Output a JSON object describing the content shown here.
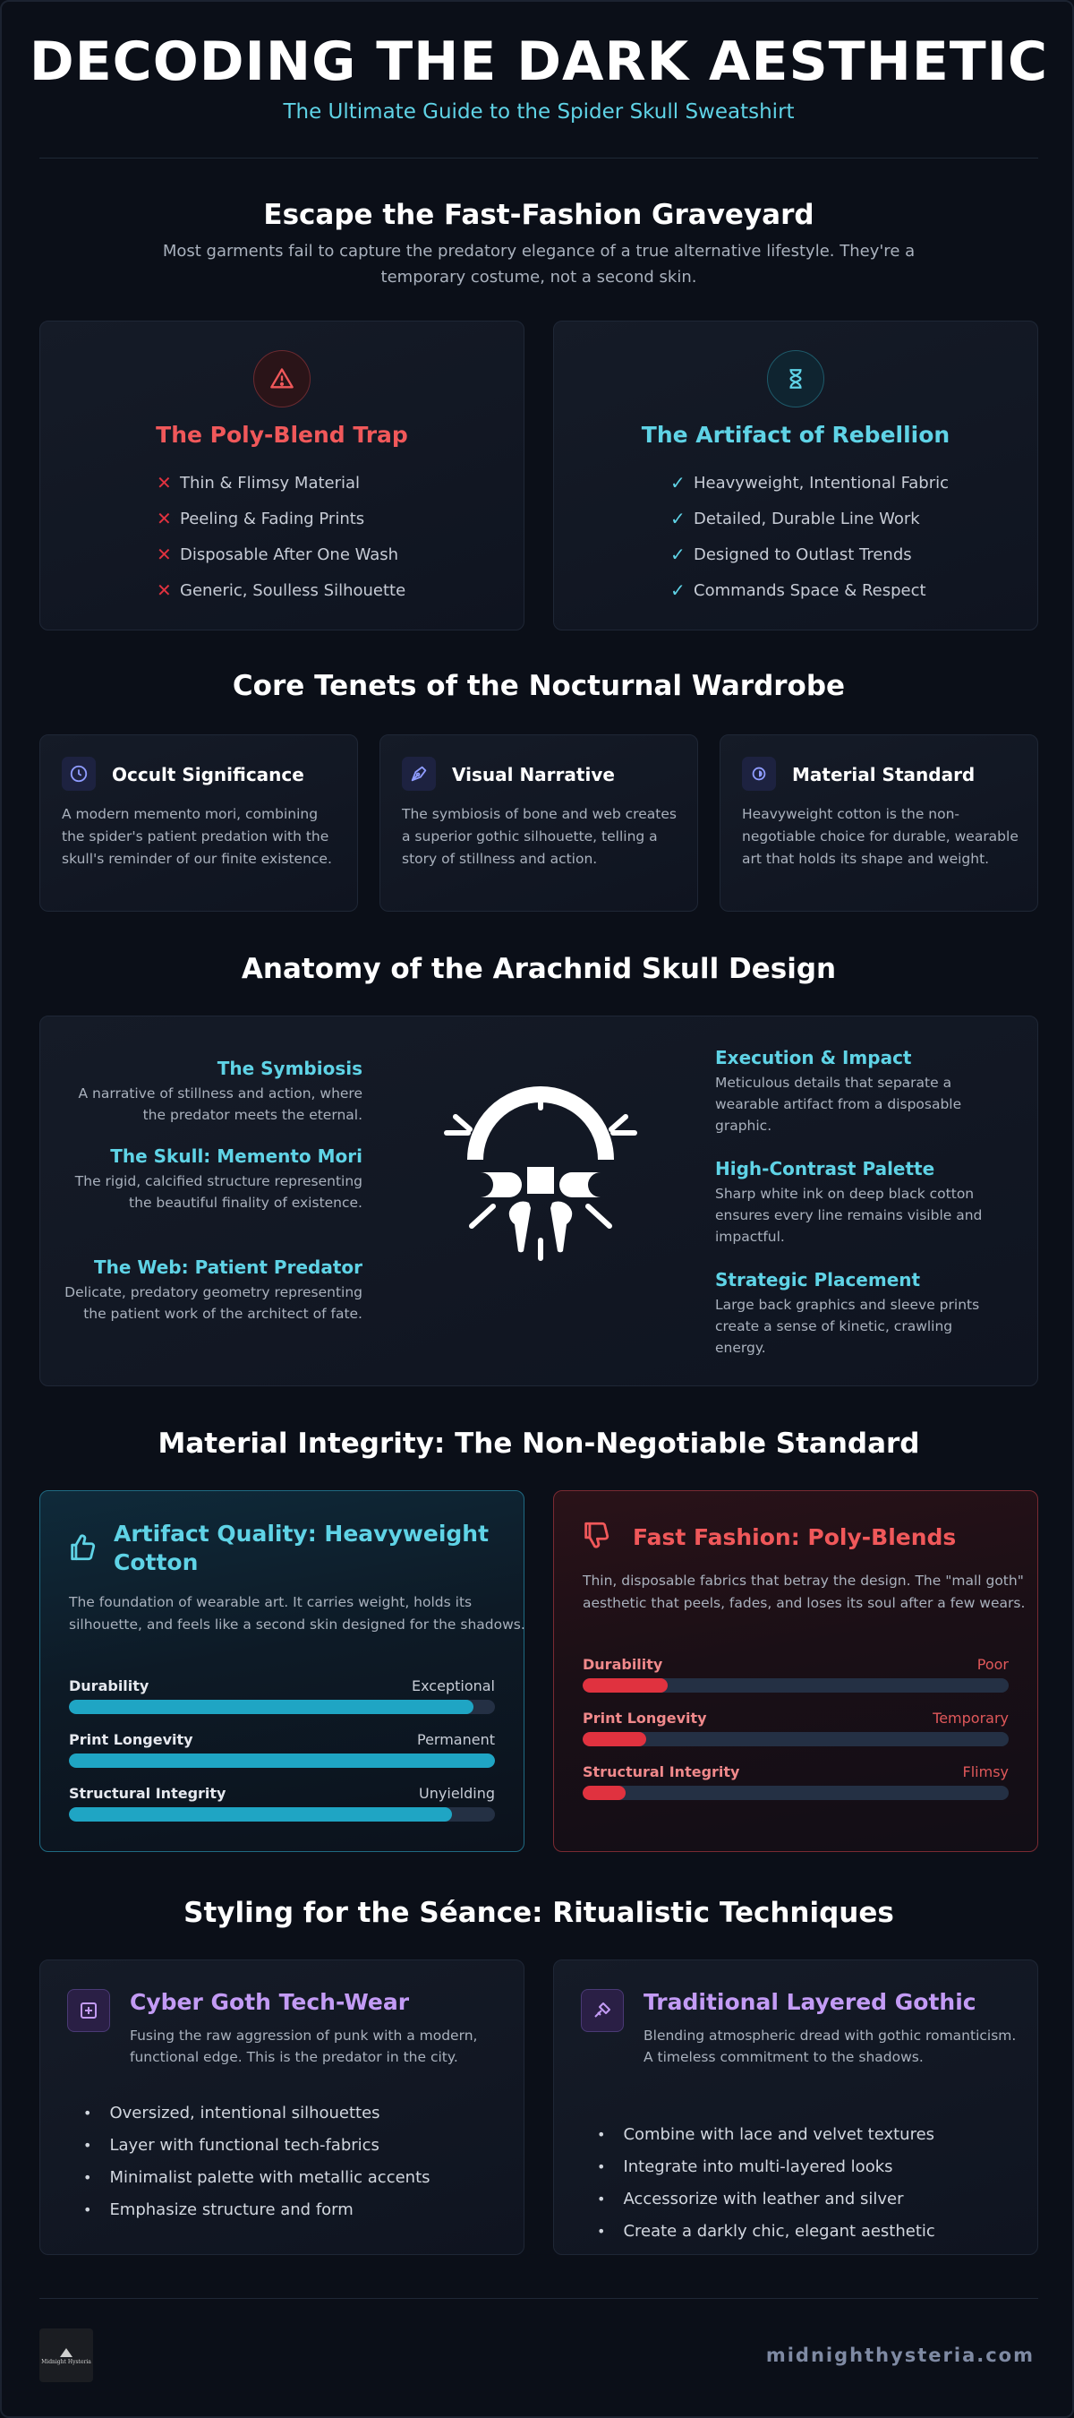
{
  "header": {
    "title": "DECODING THE DARK AESTHETIC",
    "subtitle": "The Ultimate Guide to the Spider Skull Sweatshirt"
  },
  "escape": {
    "title": "Escape the Fast-Fashion Graveyard",
    "text": "Most garments fail to capture the predatory elegance of a true alternative lifestyle. They're a temporary costume, not a second skin.",
    "trap": {
      "icon": "warning-icon",
      "title": "The Poly-Blend Trap",
      "color": "#f0585a",
      "items": [
        "Thin & Flimsy Material",
        "Peeling & Fading Prints",
        "Disposable After One Wash",
        "Generic, Soulless Silhouette"
      ]
    },
    "artifact": {
      "icon": "hourglass-icon",
      "title": "The Artifact of Rebellion",
      "color": "#5fd3e6",
      "items": [
        "Heavyweight, Intentional Fabric",
        "Detailed, Durable Line Work",
        "Designed to Outlast Trends",
        "Commands Space & Respect"
      ]
    }
  },
  "tenets": {
    "title": "Core Tenets of the Nocturnal Wardrobe",
    "items": [
      {
        "icon": "clock-icon",
        "title": "Occult Significance",
        "text": "A modern memento mori, combining the spider's patient predation with the skull's reminder of our finite existence."
      },
      {
        "icon": "pen-nib-icon",
        "title": "Visual Narrative",
        "text": "The symbiosis of bone and web creates a superior gothic silhouette, telling a story of stillness and action."
      },
      {
        "icon": "contrast-icon",
        "title": "Material Standard",
        "text": "Heavyweight cotton is the non-negotiable choice for durable, wearable art that holds its shape and weight."
      }
    ]
  },
  "anatomy": {
    "title": "Anatomy of the Arachnid Skull Design",
    "left": [
      {
        "title": "The Symbiosis",
        "text": "A narrative of stillness and action, where the predator meets the eternal."
      },
      {
        "title": "The Skull: Memento Mori",
        "text": "The rigid, calcified structure representing the beautiful finality of existence."
      },
      {
        "title": "The Web: Patient Predator",
        "text": "Delicate, predatory geometry representing the patient work of the architect of fate."
      }
    ],
    "right": [
      {
        "title": "Execution & Impact",
        "text": "Meticulous details that separate a wearable artifact from a disposable graphic."
      },
      {
        "title": "High-Contrast Palette",
        "text": "Sharp white ink on deep black cotton ensures every line remains visible and impactful."
      },
      {
        "title": "Strategic Placement",
        "text": "Large back graphics and sleeve prints create a sense of kinetic, crawling energy."
      }
    ]
  },
  "material": {
    "title": "Material Integrity: The Non-Negotiable Standard",
    "good": {
      "icon": "thumbs-up-icon",
      "title": "Artifact Quality: Heavyweight Cotton",
      "text": "The foundation of wearable art. It carries weight, holds its silhouette, and feels like a second skin designed for the shadows.",
      "color": "#5fd3e6",
      "bar_color": "#1fa5c4",
      "bars": [
        {
          "label": "Durability",
          "value": "Exceptional",
          "level": 0.95
        },
        {
          "label": "Print Longevity",
          "value": "Permanent",
          "level": 1.0
        },
        {
          "label": "Structural Integrity",
          "value": "Unyielding",
          "level": 0.9
        }
      ]
    },
    "bad": {
      "icon": "thumbs-down-icon",
      "title": "Fast Fashion: Poly-Blends",
      "text": "Thin, disposable fabrics that betray the design. The \"mall goth\" aesthetic that peels, fades, and loses its soul after a few wears.",
      "color": "#f0585a",
      "bar_color": "#e0323f",
      "bars": [
        {
          "label": "Durability",
          "value": "Poor",
          "level": 0.2
        },
        {
          "label": "Print Longevity",
          "value": "Temporary",
          "level": 0.15
        },
        {
          "label": "Structural Integrity",
          "value": "Flimsy",
          "level": 0.1
        }
      ]
    }
  },
  "styling": {
    "title": "Styling for the Séance: Ritualistic Techniques",
    "cyber": {
      "icon": "plus-square-icon",
      "title": "Cyber Goth Tech-Wear",
      "text": "Fusing the raw aggression of punk with a modern, functional edge. This is the predator in the city.",
      "items": [
        "Oversized, intentional silhouettes",
        "Layer with functional tech-fabrics",
        "Minimalist palette with metallic accents",
        "Emphasize structure and form"
      ]
    },
    "traditional": {
      "icon": "hammer-icon",
      "title": "Traditional Layered Gothic",
      "text": "Blending atmospheric dread with gothic romanticism. A timeless commitment to the shadows.",
      "items": [
        "Combine with lace and velvet textures",
        "Integrate into multi-layered looks",
        "Accessorize with leather and silver",
        "Create a darkly chic, elegant aesthetic"
      ]
    }
  },
  "footer": {
    "logo_text": "Midnight Hysteria",
    "site": "midnighthysteria.com"
  }
}
